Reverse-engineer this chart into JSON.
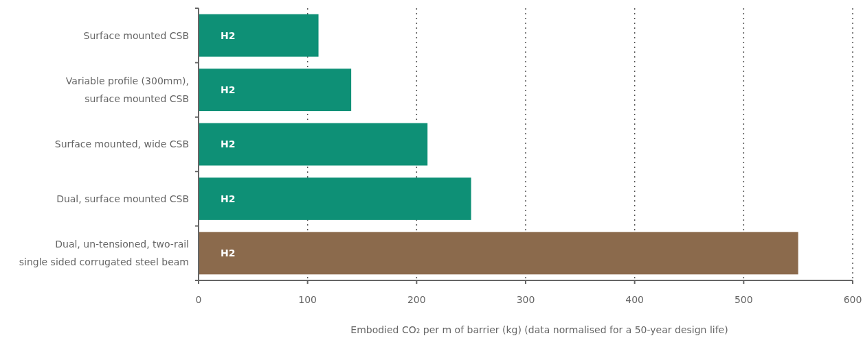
{
  "chart_data": {
    "type": "bar",
    "orientation": "horizontal",
    "xlabel": "Embodied CO₂ per m of barrier (kg) (data normalised for a 50-year design life)",
    "categories": [
      "Surface mounted CSB",
      "Variable profile (300mm), surface mounted CSB",
      "Surface mounted, wide CSB",
      "Dual, surface mounted CSB",
      "Dual, un-tensioned, two-rail single sided corrugated steel beam"
    ],
    "values": [
      110,
      140,
      210,
      250,
      550
    ],
    "colors": [
      "#0e9076",
      "#0e9076",
      "#0e9076",
      "#0e9076",
      "#8b6a4c"
    ],
    "value_labels": [
      "H2",
      "H2",
      "H2",
      "H2",
      "H2"
    ],
    "xlim": [
      0,
      600
    ],
    "xticks": [
      0,
      100,
      200,
      300,
      400,
      500,
      600
    ],
    "grid": "x"
  }
}
